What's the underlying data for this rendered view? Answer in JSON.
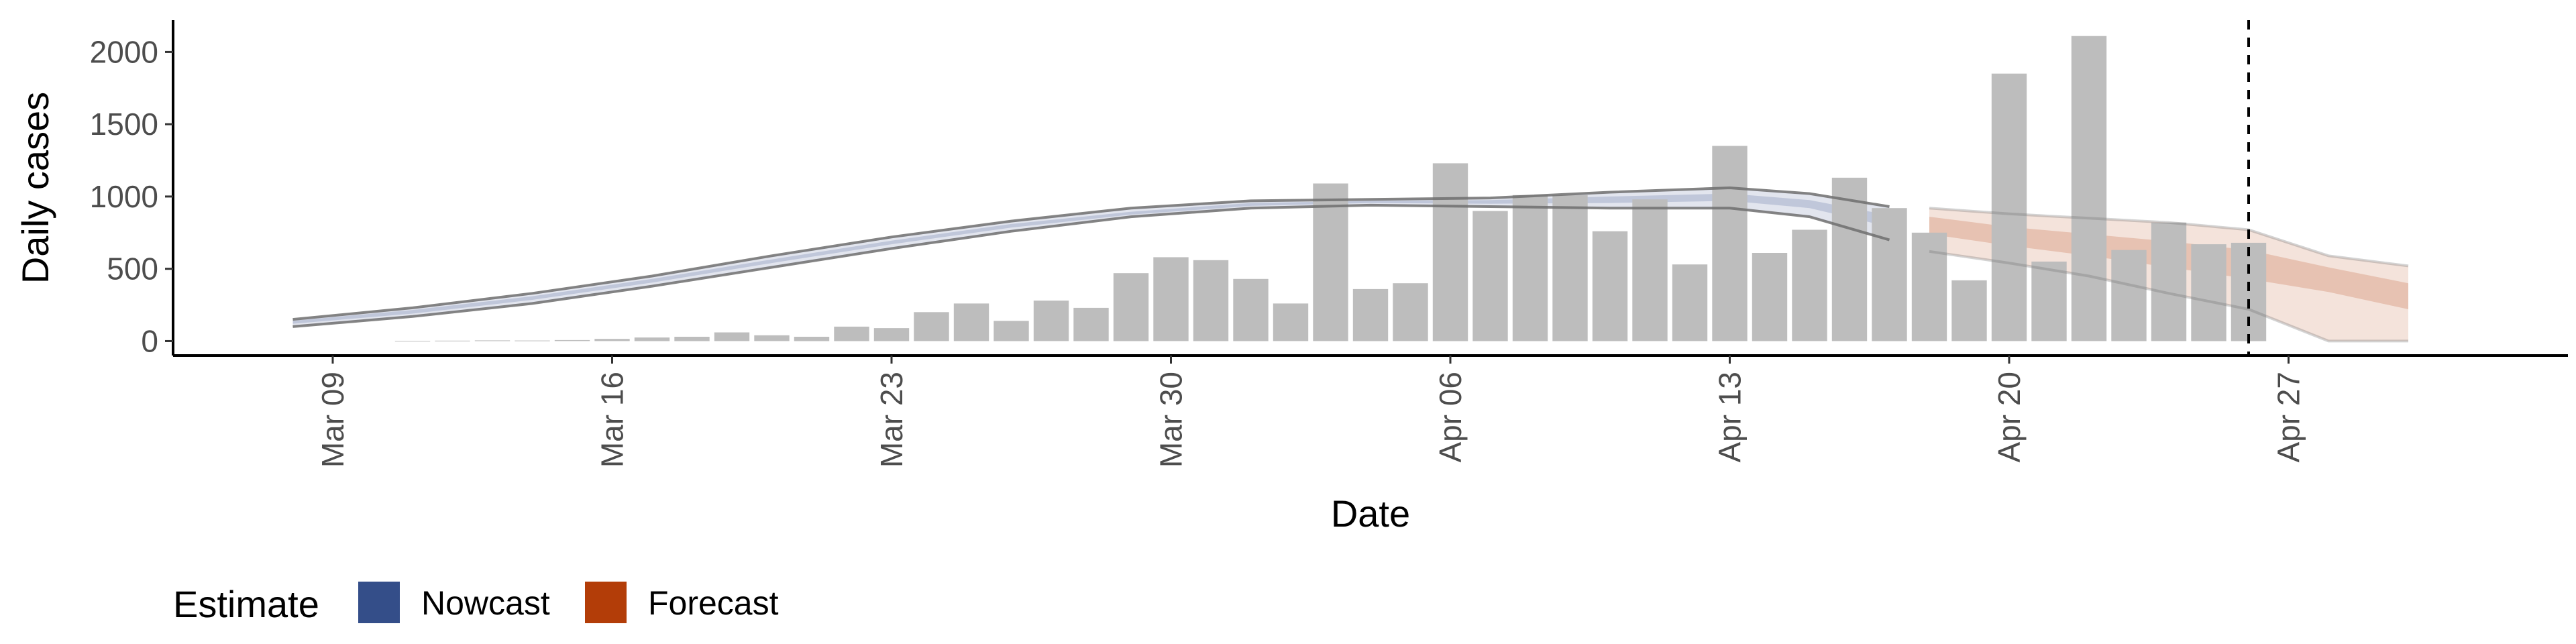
{
  "chart_data": {
    "type": "bar",
    "xlabel": "Date",
    "ylabel": "Daily cases",
    "xlim": [
      "2020-03-05",
      "2020-05-04"
    ],
    "ylim": [
      -100,
      2220
    ],
    "y_ticks": [
      0,
      500,
      1000,
      1500,
      2000
    ],
    "x_ticks": [
      {
        "date": "2020-03-09",
        "label": "Mar 09"
      },
      {
        "date": "2020-03-16",
        "label": "Mar 16"
      },
      {
        "date": "2020-03-23",
        "label": "Mar 23"
      },
      {
        "date": "2020-03-30",
        "label": "Mar 30"
      },
      {
        "date": "2020-04-06",
        "label": "Apr 06"
      },
      {
        "date": "2020-04-13",
        "label": "Apr 13"
      },
      {
        "date": "2020-04-20",
        "label": "Apr 20"
      },
      {
        "date": "2020-04-27",
        "label": "Apr 27"
      }
    ],
    "grid": false,
    "vline_date": "2020-04-26",
    "bars": {
      "dates": [
        "2020-03-11",
        "2020-03-12",
        "2020-03-13",
        "2020-03-14",
        "2020-03-15",
        "2020-03-16",
        "2020-03-17",
        "2020-03-18",
        "2020-03-19",
        "2020-03-20",
        "2020-03-21",
        "2020-03-22",
        "2020-03-23",
        "2020-03-24",
        "2020-03-25",
        "2020-03-26",
        "2020-03-27",
        "2020-03-28",
        "2020-03-29",
        "2020-03-30",
        "2020-03-31",
        "2020-04-01",
        "2020-04-02",
        "2020-04-03",
        "2020-04-04",
        "2020-04-05",
        "2020-04-06",
        "2020-04-07",
        "2020-04-08",
        "2020-04-09",
        "2020-04-10",
        "2020-04-11",
        "2020-04-12",
        "2020-04-13",
        "2020-04-14",
        "2020-04-15",
        "2020-04-16",
        "2020-04-17",
        "2020-04-18",
        "2020-04-19",
        "2020-04-20",
        "2020-04-21",
        "2020-04-22",
        "2020-04-23",
        "2020-04-24",
        "2020-04-25",
        "2020-04-26"
      ],
      "values": [
        2,
        3,
        5,
        4,
        7,
        15,
        25,
        30,
        60,
        40,
        30,
        100,
        90,
        200,
        260,
        140,
        280,
        230,
        470,
        580,
        560,
        430,
        260,
        1090,
        360,
        400,
        1230,
        900,
        1010,
        1010,
        760,
        980,
        530,
        1350,
        610,
        770,
        1130,
        920,
        750,
        420,
        1850,
        550,
        2110,
        630,
        820,
        670,
        680
      ]
    },
    "series": [
      {
        "name": "Nowcast",
        "color": "#3a4f8c",
        "dates": [
          "2020-03-08",
          "2020-03-11",
          "2020-03-14",
          "2020-03-17",
          "2020-03-20",
          "2020-03-23",
          "2020-03-26",
          "2020-03-29",
          "2020-04-01",
          "2020-04-04",
          "2020-04-07",
          "2020-04-10",
          "2020-04-13",
          "2020-04-15",
          "2020-04-17"
        ],
        "lower90": [
          100,
          170,
          260,
          380,
          510,
          640,
          760,
          860,
          920,
          940,
          930,
          920,
          920,
          860,
          700
        ],
        "lower50": [
          120,
          190,
          285,
          405,
          540,
          670,
          785,
          875,
          935,
          955,
          950,
          955,
          970,
          920,
          790
        ],
        "upper50": [
          140,
          215,
          310,
          430,
          565,
          695,
          810,
          895,
          955,
          970,
          975,
          1000,
          1020,
          975,
          870
        ],
        "upper90": [
          150,
          230,
          330,
          450,
          590,
          720,
          830,
          920,
          970,
          980,
          990,
          1030,
          1060,
          1020,
          930
        ]
      },
      {
        "name": "Forecast",
        "color": "#b5400f",
        "dates": [
          "2020-04-18",
          "2020-04-20",
          "2020-04-22",
          "2020-04-24",
          "2020-04-26",
          "2020-04-28",
          "2020-04-30"
        ],
        "lower90": [
          620,
          540,
          450,
          330,
          220,
          0,
          0
        ],
        "lower50": [
          740,
          660,
          590,
          510,
          430,
          340,
          220
        ],
        "upper50": [
          860,
          790,
          740,
          690,
          630,
          510,
          400
        ],
        "upper90": [
          920,
          880,
          850,
          820,
          770,
          590,
          520
        ]
      }
    ],
    "legend": {
      "title": "Estimate",
      "position": "bottom-left",
      "items": [
        {
          "label": "Nowcast",
          "color": "#344e89"
        },
        {
          "label": "Forecast",
          "color": "#b33d08"
        }
      ]
    },
    "colors": {
      "bar": "#bdbdbd",
      "axis": "#000000",
      "nowcast_band": "#c5ccdf",
      "forecast_band": "#f0d2c4"
    }
  }
}
